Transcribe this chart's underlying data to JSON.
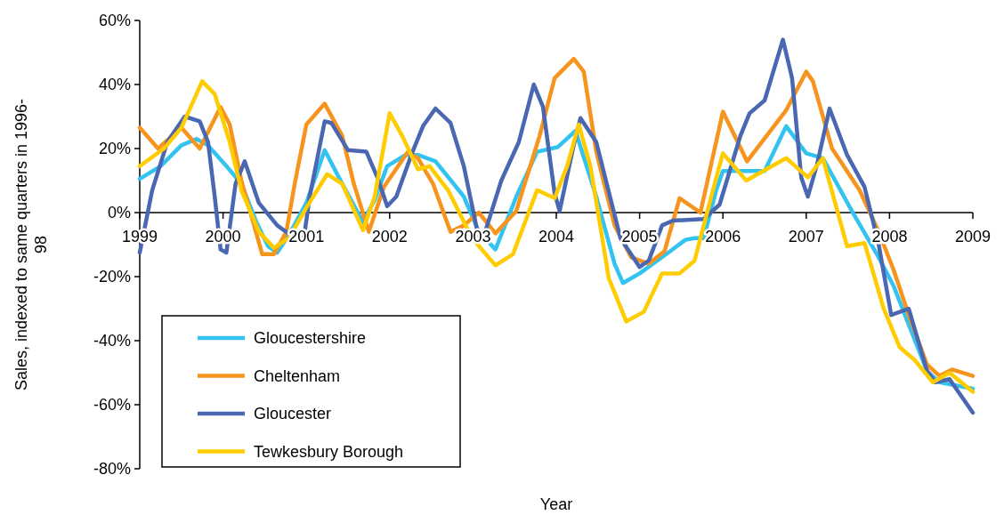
{
  "chart_data": {
    "type": "line",
    "xlabel": "Year",
    "ylabel": "Sales, indexed to same quarters in 1996-98",
    "xlim": [
      1999,
      2009
    ],
    "xticks": [
      1999,
      2000,
      2001,
      2002,
      2003,
      2004,
      2005,
      2006,
      2007,
      2008,
      2009
    ],
    "ylim": [
      -80,
      60
    ],
    "yticks": [
      {
        "value": -80,
        "label": "-80%"
      },
      {
        "value": -60,
        "label": "-60%"
      },
      {
        "value": -40,
        "label": "-40%"
      },
      {
        "value": -20,
        "label": "-20%"
      },
      {
        "value": 0,
        "label": "0%"
      },
      {
        "value": 20,
        "label": "20%"
      },
      {
        "value": 40,
        "label": "40%"
      },
      {
        "value": 60,
        "label": "60%"
      }
    ],
    "grid": false,
    "legend": "bottom left",
    "series": [
      {
        "name": "Gloucestershire",
        "color": "#33c3f0",
        "x": [
          1999,
          1999.25,
          1999.5,
          1999.68,
          1999.82,
          2000.04,
          2000.22,
          2000.4,
          2000.54,
          2000.65,
          2000.79,
          2001,
          2001.22,
          2001.43,
          2001.68,
          2001.82,
          2001.97,
          2002.19,
          2002.34,
          2002.55,
          2002.89,
          2003.07,
          2003.27,
          2003.52,
          2003.77,
          2004.02,
          2004.23,
          2004.48,
          2004.7,
          2004.8,
          2005,
          2005.37,
          2005.55,
          2005.66,
          2005.77,
          2005.92,
          2006,
          2006.5,
          2006.76,
          2007,
          2007.2,
          2007.57,
          2007.87,
          2008.05,
          2008.23,
          2008.45,
          2008.6,
          2009
        ],
        "values": [
          10.5,
          14.5,
          21,
          23,
          21,
          14.5,
          9,
          -3,
          -10.5,
          -12.5,
          -7,
          3,
          19.5,
          9,
          -3,
          4,
          14.5,
          18,
          18,
          16,
          5,
          -6,
          -11.5,
          5,
          19,
          20.5,
          25.5,
          5,
          -16,
          -22,
          -19,
          -12,
          -8.5,
          -8,
          -8,
          7,
          13,
          13,
          27,
          18.5,
          17,
          -0.5,
          -14,
          -23,
          -35,
          -49.5,
          -53,
          -55
        ]
      },
      {
        "name": "Cheltenham",
        "color": "#f7941d",
        "x": [
          1999,
          1999.22,
          1999.5,
          1999.72,
          1999.97,
          2000.08,
          2000.22,
          2000.47,
          2000.61,
          2000.76,
          2000.86,
          2001,
          2001.22,
          2001.43,
          2001.57,
          2001.75,
          2001.93,
          2002.22,
          2002.34,
          2002.52,
          2002.73,
          2002.89,
          2003.07,
          2003.27,
          2003.52,
          2003.8,
          2003.98,
          2004.21,
          2004.33,
          2004.48,
          2004.7,
          2004.9,
          2005.11,
          2005.3,
          2005.48,
          2005.73,
          2006,
          2006.29,
          2006.76,
          2007,
          2007.08,
          2007.31,
          2007.64,
          2007.87,
          2008.05,
          2008.23,
          2008.45,
          2008.6,
          2008.75,
          2009
        ],
        "values": [
          26.5,
          20,
          26.5,
          20,
          33,
          27.5,
          10,
          -13,
          -13,
          -6,
          9,
          27.5,
          34,
          24,
          9,
          -6,
          8,
          19,
          17,
          9,
          -6,
          -4,
          0,
          -6.5,
          0.5,
          24,
          42,
          48,
          44,
          19,
          -4,
          -14,
          -16,
          -12,
          4.5,
          0,
          31.5,
          16,
          32,
          44,
          41,
          20,
          7,
          -6,
          -18,
          -32,
          -47.5,
          -51,
          -49,
          -51
        ]
      },
      {
        "name": "Gloucester",
        "color": "#4a67b1",
        "x": [
          1999,
          1999.15,
          1999.33,
          1999.54,
          1999.72,
          1999.82,
          1999.9,
          1999.97,
          2000.04,
          2000.15,
          2000.26,
          2000.43,
          2000.65,
          2000.86,
          2000.97,
          2001.04,
          2001.22,
          2001.3,
          2001.5,
          2001.72,
          2001.86,
          2001.97,
          2002.08,
          2002.26,
          2002.4,
          2002.55,
          2002.73,
          2002.89,
          2003.07,
          2003.14,
          2003.34,
          2003.55,
          2003.73,
          2003.84,
          2003.98,
          2004.04,
          2004.2,
          2004.29,
          2004.48,
          2004.77,
          2005,
          2005.11,
          2005.27,
          2005.4,
          2005.77,
          2005.96,
          2006.21,
          2006.32,
          2006.5,
          2006.72,
          2006.83,
          2006.94,
          2007.02,
          2007.13,
          2007.28,
          2007.49,
          2007.7,
          2007.87,
          2008.02,
          2008.23,
          2008.45,
          2008.55,
          2008.72,
          2009
        ],
        "values": [
          -12.5,
          7,
          22,
          30,
          28.5,
          22,
          5,
          -11.5,
          -12.5,
          9,
          16,
          3,
          -4,
          -8,
          -8,
          5,
          28.5,
          28,
          19.5,
          19,
          10.5,
          2,
          5,
          18,
          27,
          32.5,
          28,
          14.5,
          -8,
          -6.5,
          10,
          22,
          40,
          33,
          6,
          0.5,
          20,
          29.5,
          22,
          -8,
          -17,
          -15,
          -4,
          -2.5,
          -2,
          2.5,
          24,
          31,
          35,
          54,
          42,
          11,
          5,
          15,
          32.5,
          18,
          8,
          -10,
          -32,
          -30,
          -49.5,
          -53,
          -52,
          -62.5
        ]
      },
      {
        "name": "Tewkesbury Borough",
        "color": "#ffcc00",
        "x": [
          1999,
          1999.29,
          1999.5,
          1999.75,
          1999.9,
          2000.08,
          2000.22,
          2000.43,
          2000.61,
          2000.79,
          2001,
          2001.25,
          2001.43,
          2001.68,
          2001.82,
          2002,
          2002.15,
          2002.34,
          2002.48,
          2002.7,
          2002.99,
          2003.27,
          2003.48,
          2003.77,
          2003.98,
          2004.13,
          2004.27,
          2004.41,
          2004.63,
          2004.84,
          2005.05,
          2005.27,
          2005.48,
          2005.66,
          2005.88,
          2006,
          2006.28,
          2006.76,
          2007.02,
          2007.2,
          2007.49,
          2007.7,
          2007.93,
          2008.12,
          2008.3,
          2008.52,
          2008.72,
          2009
        ],
        "values": [
          14.5,
          20,
          26.5,
          41,
          37,
          22,
          7,
          -6,
          -11,
          -8,
          1.5,
          12,
          9,
          -5.5,
          5,
          31,
          24,
          13.5,
          14.5,
          7,
          -8,
          -16.5,
          -13,
          7,
          4.5,
          14.5,
          27.5,
          14.5,
          -20.5,
          -34,
          -31,
          -19,
          -19,
          -15,
          7,
          18.5,
          10,
          17,
          11,
          17,
          -10.5,
          -9.5,
          -30,
          -42,
          -46,
          -53,
          -50,
          -56
        ]
      }
    ]
  }
}
